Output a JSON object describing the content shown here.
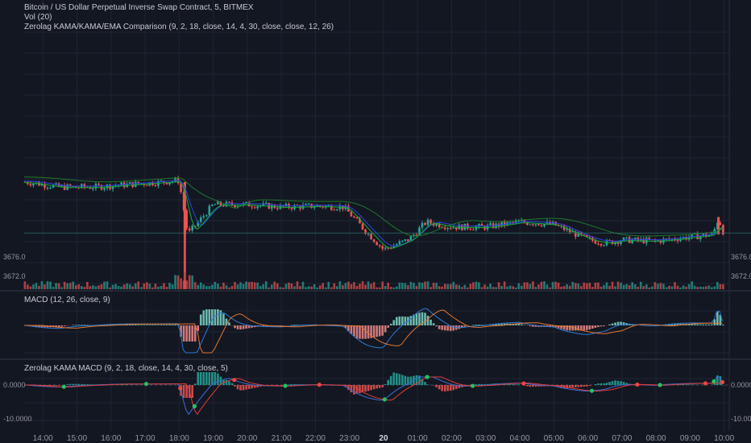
{
  "legends": {
    "symbol": "Bitcoin / US Dollar Perpetual Inverse Swap Contract, 5, BITMEX",
    "volume": "Vol (20)",
    "zerolag": "Zerolag KAMA/KAMA/EMA Comparison (9, 2, 18, close, 14, 4, 30, close, close, 12, 26)",
    "macd": "MACD (12, 26, close, 9)",
    "kama_macd": "Zerolag KAMA MACD (9, 2, 18, close, 14, 4, 30, close, 5)"
  },
  "colors": {
    "background": "#131722",
    "grid": "#1f2433",
    "candle_up": "#26a69a",
    "candle_down": "#ef5350",
    "ma_blue": "#2b3fd6",
    "ma_green": "#19a33a",
    "ma_dark_green": "#1d7a2a",
    "macd_line": "#2b7bd6",
    "signal_line": "#e6762e",
    "kama_fast": "#3b6fd6",
    "kama_slow": "#e23b3b",
    "cross_green": "#22c55e",
    "cross_red": "#ef4444"
  },
  "chart_data": [
    {
      "type": "candlestick",
      "x_ticks": [
        "14:00",
        "15:00",
        "16:00",
        "17:00",
        "18:00",
        "19:00",
        "20:00",
        "21:00",
        "22:00",
        "23:00",
        "20",
        "01:00",
        "02:00",
        "03:00",
        "04:00",
        "05:00",
        "06:00",
        "07:00",
        "08:00",
        "09:00",
        "10:00"
      ],
      "y_ticks": [
        "3676.0",
        "3672.0"
      ],
      "y_ticks_shown_side": "left and right",
      "price_path_approx": [
        [
          "13:30",
          3691.0
        ],
        [
          "14:30",
          3690.0
        ],
        [
          "15:30",
          3690.0
        ],
        [
          "16:30",
          3690.5
        ],
        [
          "17:30",
          3691.0
        ],
        [
          "18:00",
          3691.3
        ],
        [
          "18:15",
          3680.5
        ],
        [
          "19:00",
          3686.5
        ],
        [
          "20:00",
          3686.5
        ],
        [
          "21:00",
          3686.0
        ],
        [
          "22:00",
          3686.2
        ],
        [
          "22:50",
          3686.0
        ],
        [
          "23:30",
          3681.0
        ],
        [
          "00:00",
          3677.5
        ],
        [
          "00:45",
          3679.5
        ],
        [
          "01:15",
          3683.0
        ],
        [
          "02:00",
          3682.0
        ],
        [
          "03:00",
          3682.0
        ],
        [
          "04:00",
          3683.0
        ],
        [
          "05:00",
          3682.5
        ],
        [
          "06:00",
          3679.5
        ],
        [
          "06:30",
          3678.8
        ],
        [
          "07:00",
          3679.4
        ],
        [
          "08:00",
          3679.2
        ],
        [
          "09:00",
          3680.0
        ],
        [
          "09:40",
          3680.5
        ],
        [
          "09:50",
          3683.8
        ],
        [
          "10:00",
          3680.5
        ]
      ],
      "series": [
        {
          "name": "Zerolag KAMA",
          "color": "blue"
        },
        {
          "name": "KAMA",
          "color": "green"
        },
        {
          "name": "EMA",
          "color": "dark green"
        }
      ]
    },
    {
      "type": "bar",
      "name": "Vol (20)",
      "note": "volume histogram in lower part of main pane, spike near 18:10"
    },
    {
      "type": "line",
      "name": "MACD (12, 26, close, 9)",
      "series": [
        "MACD",
        "Signal",
        "Histogram"
      ]
    },
    {
      "type": "line",
      "name": "Zerolag KAMA MACD (9, 2, 18, close, 14, 4, 30, close, 5)",
      "y_ticks": [
        "0.0000",
        "-10.0000"
      ],
      "series": [
        "Fast",
        "Slow",
        "Histogram",
        "Crossovers"
      ]
    }
  ]
}
